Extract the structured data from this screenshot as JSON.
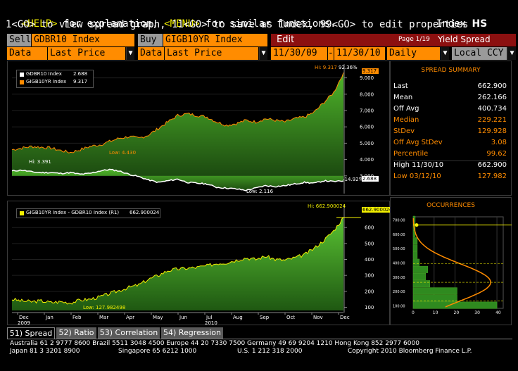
{
  "header": {
    "line1_help": "<HELP>",
    "line1_mid": " for explanation, ",
    "line1_menu": "<MENU>",
    "line1_end": " for similar functions.",
    "line1_index_label": "Index",
    "line1_function": "HS",
    "line2": "1<GO> to view spread graph, 11<GO> to save as Index, 99<GO> to edit properties"
  },
  "toolbar": {
    "sell_label": "Sell",
    "sell_ticker": "GDBR10 Index",
    "buy_label": "Buy",
    "buy_ticker": "GIGB10YR Index",
    "edit_label": "Edit",
    "page_info": "Page 1/19",
    "title": "Yield Spread",
    "data1_label": "Data",
    "data1_value": "Last Price",
    "data2_label": "Data",
    "data2_value": "Last Price",
    "date_start": "11/30/09",
    "date_sep": "-",
    "date_end": "11/30/10",
    "period": "Daily",
    "currency": "Local CCY"
  },
  "legend_top": {
    "series1_name": "GDBR10 Index",
    "series1_value": "2.688",
    "series2_name": "GIGB10YR Index",
    "series2_value": "9.317",
    "series1_color": "#ffffff",
    "series2_color": "#ff8c00"
  },
  "legend_bottom": {
    "series_name": "GIGB10YR Index - GDBR10 Index (R1)",
    "series_value": "662.900024",
    "color": "#f3f000"
  },
  "annotations": {
    "top_hi_label": "Hi: 9.317",
    "top_hi_pct": "92.36%",
    "top_low_label": "Low: 4.430",
    "white_hi_label": "Hi: 3.391",
    "white_low_label": "Low: 2.116",
    "white_pct": "-14.92%",
    "top_last_orange": "9.317",
    "top_last_white": "2.688",
    "bot_hi_label": "Hi: 662.900024",
    "bot_low_label": "Low: 127.982498",
    "bot_last": "662.900024"
  },
  "chart_data": [
    {
      "type": "area",
      "series": [
        {
          "name": "GIGB10YR Index",
          "values": [
            4.6,
            4.7,
            4.8,
            4.75,
            4.7,
            4.55,
            4.43,
            4.6,
            4.8,
            4.9,
            5.1,
            5.3,
            5.4,
            5.3,
            5.5,
            5.9,
            6.3,
            6.7,
            6.8,
            6.7,
            6.6,
            6.3,
            6.1,
            6.2,
            6.4,
            6.3,
            6.5,
            6.4,
            6.3,
            6.5,
            6.6,
            6.9,
            7.5,
            8.1,
            9.317
          ]
        },
        {
          "name": "GDBR10 Index",
          "values": [
            3.3,
            3.35,
            3.25,
            3.2,
            3.2,
            3.15,
            3.2,
            3.1,
            3.15,
            3.3,
            3.391,
            3.3,
            3.1,
            2.95,
            2.75,
            2.6,
            2.7,
            2.8,
            2.6,
            2.55,
            2.5,
            2.3,
            2.25,
            2.2,
            2.116,
            2.25,
            2.4,
            2.35,
            2.4,
            2.5,
            2.6,
            2.55,
            2.7,
            2.65,
            2.688
          ]
        }
      ],
      "ylim": [
        2.0,
        9.5
      ],
      "yticks": [
        3.0,
        4.0,
        5.0,
        6.0,
        7.0,
        8.0,
        9.0
      ],
      "ytick_labels": [
        "3.000",
        "4.000",
        "5.000",
        "6.000",
        "7.000",
        "8.000",
        "9.000"
      ]
    },
    {
      "type": "area",
      "series": [
        {
          "name": "GIGB10YR Index - GDBR10 Index (R1)",
          "values": [
            150,
            140,
            135,
            140,
            130,
            135,
            127.98,
            145,
            150,
            165,
            185,
            205,
            225,
            240,
            275,
            300,
            330,
            340,
            345,
            350,
            360,
            375,
            380,
            395,
            410,
            400,
            420,
            400,
            395,
            410,
            430,
            470,
            520,
            580,
            662.9
          ]
        }
      ],
      "ylim": [
        80,
        720
      ],
      "yticks": [
        100,
        200,
        300,
        400,
        500,
        600
      ],
      "x_month_labels": [
        "Dec",
        "Jan",
        "Feb",
        "Mar",
        "Apr",
        "May",
        "Jun",
        "Jul",
        "Aug",
        "Sep",
        "Oct",
        "Nov",
        "Dec"
      ],
      "x_year_labels": [
        "2009",
        "2010"
      ]
    },
    {
      "type": "bar",
      "title": "OCCURRENCES",
      "categories": [
        100,
        150,
        200,
        250,
        300,
        350,
        400,
        450,
        500,
        550,
        600,
        650,
        700
      ],
      "values": [
        40,
        21,
        21,
        8,
        6,
        7,
        3,
        2,
        2,
        2,
        1,
        1,
        1
      ],
      "xticks": [
        0,
        10,
        20,
        30,
        40
      ],
      "yticks": [
        100,
        200,
        300,
        400,
        500,
        600,
        700
      ],
      "ytick_labels": [
        "100.00",
        "200.00",
        "300.00",
        "400.00",
        "500.00",
        "600.00",
        "700.00"
      ]
    }
  ],
  "summary": {
    "title": "SPREAD SUMMARY",
    "rows": [
      {
        "label": "Last",
        "value": "662.900",
        "color": "#ffffff"
      },
      {
        "label": "Mean",
        "value": "262.166",
        "color": "#ffffff"
      },
      {
        "label": "Off Avg",
        "value": "400.734",
        "color": "#ffffff"
      },
      {
        "label": "Median",
        "value": "229.221",
        "color": "#ff8c00"
      },
      {
        "label": "StDev",
        "value": "129.928",
        "color": "#ff8c00"
      },
      {
        "label": "Off Avg StDev",
        "value": "3.08",
        "color": "#ff8c00"
      },
      {
        "label": "Percentile",
        "value": "99.62",
        "color": "#ff8c00"
      },
      {
        "label": "High 11/30/10",
        "value": "662.900",
        "color": "#ffffff"
      },
      {
        "label": "Low 03/12/10",
        "value": "127.982",
        "color": "#ff8c00"
      }
    ]
  },
  "tabs": [
    {
      "label": "51) Spread",
      "active": true
    },
    {
      "label": "52) Ratio",
      "active": false
    },
    {
      "label": "53) Correlation",
      "active": false
    },
    {
      "label": "54) Regression",
      "active": false
    }
  ],
  "footer": {
    "line1": "Australia 61 2 9777 8600 Brazil 5511 3048 4500 Europe 44 20 7330 7500 Germany 49 69 9204 1210 Hong Kong 852 2977 6000",
    "line2a": "Japan 81 3 3201 8900",
    "line2b": "Singapore 65 6212 1000",
    "line2c": "U.S. 1 212 318 2000",
    "line2d": "Copyright 2010 Bloomberg Finance L.P."
  }
}
